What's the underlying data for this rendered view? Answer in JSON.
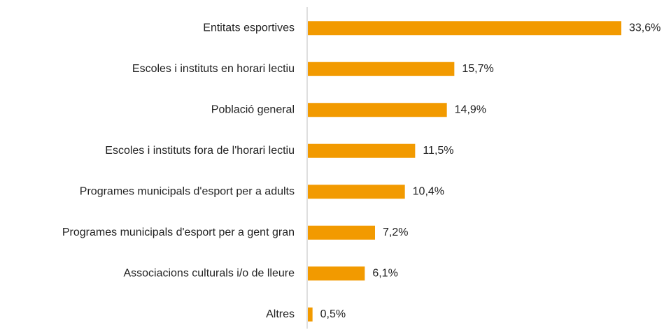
{
  "chart_data": {
    "type": "bar",
    "orientation": "horizontal",
    "categories": [
      "Entitats esportives",
      "Escoles i instituts en horari lectiu",
      "Població general",
      "Escoles i instituts fora de l'horari lectiu",
      "Programes municipals d'esport per a adults",
      "Programes municipals d'esport per a gent gran",
      "Associacions culturals i/o de lleure",
      "Altres"
    ],
    "values": [
      33.6,
      15.7,
      14.9,
      11.5,
      10.4,
      7.2,
      6.1,
      0.5
    ],
    "value_labels": [
      "33,6%",
      "15,7%",
      "14,9%",
      "11,5%",
      "10,4%",
      "7,2%",
      "6,1%",
      "0,5%"
    ],
    "color": "#f29a00"
  }
}
